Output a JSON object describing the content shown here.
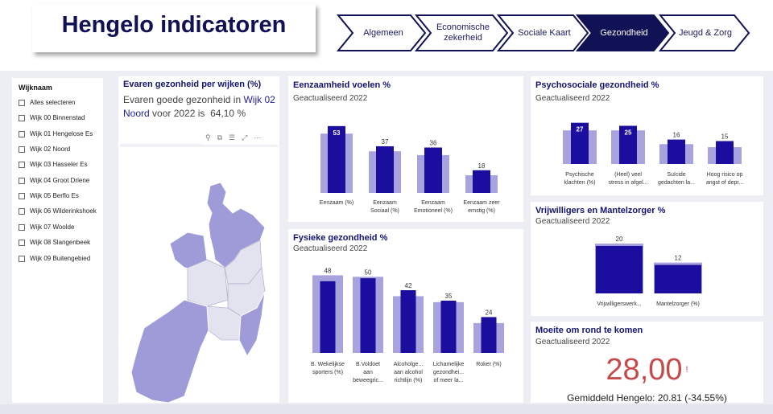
{
  "header": {
    "title": "Hengelo indicatoren"
  },
  "nav": {
    "tabs": [
      "Algemeen",
      "Economische zekerheid",
      "Sociale Kaart",
      "Gezondheid",
      "Jeugd & Zorg"
    ],
    "active": "Gezondheid"
  },
  "slicer": {
    "title": "Wijknaam",
    "items": [
      "Alles selecteren",
      "Wijk 00 Binnenstad",
      "Wijk 01 Hengelose Es",
      "Wijk 02 Noord",
      "Wijk 03 Hasseler Es",
      "Wijk 04 Groot Driene",
      "Wijk 05 Berflo Es",
      "Wijk 06 Wilderinkshoek",
      "Wijk 07 Woolde",
      "Wijk 08 Slangenbeek",
      "Wijk 09 Buitengebied"
    ]
  },
  "map_card": {
    "title": "Evaren gezonheid per wijken (%)",
    "text_before": "Evaren goede gezonheid in",
    "highlight_1": "Wijk 02",
    "highlight_2": "Noord",
    "text_after": "voor 2022 is",
    "value": "64,10 %"
  },
  "eenzaamheid": {
    "title": "Eenzaamheid voelen %",
    "subtitle": "Geactualiseerd 2022"
  },
  "fysiek": {
    "title": "Fysieke gezondheid %",
    "subtitle": "Geactualiseerd 2022"
  },
  "psycho": {
    "title": "Psychosociale gezondheid %",
    "subtitle": "Geactualiseerd 2022"
  },
  "vrijwilligers": {
    "title": "Vrijwilligers en Mantelzorger %",
    "subtitle": "Geactualiseerd 2022"
  },
  "moeite": {
    "title": "Moeite om rond te komen",
    "subtitle": "Geactualiseerd 2022",
    "value": "28,00",
    "flag": "!",
    "footer": "Gemiddeld Hengelo: 20.81 (-34.55%)"
  },
  "colors": {
    "navy": "#1b0d9e",
    "lavender": "#a8a3dd",
    "title_blue": "#141470",
    "kpi_red": "#c64a4c",
    "map_highlight": "#9e9bd8",
    "map_light": "#e3e3f0"
  },
  "chart_data": [
    {
      "type": "bar",
      "id": "eenzaamheid",
      "categories": [
        [
          "Eenzaam (%)"
        ],
        [
          "Eenzaam",
          "Sociaal (%)"
        ],
        [
          "Eenzaam",
          "Emotioneel (%)"
        ],
        [
          "Eenzaam zeer",
          "ernstig (%)"
        ]
      ],
      "values": [
        53,
        37,
        36,
        18
      ],
      "reference": [
        47,
        33,
        30,
        14
      ],
      "ylim": [
        0,
        58
      ]
    },
    {
      "type": "bar",
      "id": "fysiek",
      "categories": [
        [
          "B. Wekelijkse",
          "sporters (%)"
        ],
        [
          "B.Voldoet",
          "aan",
          "beweegric..."
        ],
        [
          "Alcoholge...",
          "aan alcohol",
          "richtlijn (%)"
        ],
        [
          "Lichamelijke",
          "gezondhei...",
          "of meer la..."
        ],
        [
          "Roker (%)"
        ]
      ],
      "values": [
        48,
        50,
        42,
        35,
        24
      ],
      "reference": [
        52,
        51,
        38,
        34,
        20
      ],
      "ylim": [
        0,
        56
      ]
    },
    {
      "type": "bar",
      "id": "psycho",
      "categories": [
        [
          "Psychische",
          "klachten (%)"
        ],
        [
          "(Heel) veel",
          "stress in afgel..."
        ],
        [
          "Suïcide",
          "gedachten la..."
        ],
        [
          "Hoog risico op",
          "angst of depr..."
        ]
      ],
      "values": [
        27,
        25,
        16,
        15
      ],
      "reference": [
        22,
        22,
        13,
        11
      ],
      "ylim": [
        0,
        30
      ]
    },
    {
      "type": "bar",
      "id": "vrijwilligers",
      "categories": [
        [
          "Vrijwilligerswerk..."
        ],
        [
          "Mantelzorger (%)"
        ]
      ],
      "values": [
        20,
        12
      ],
      "reference": [
        21,
        13
      ],
      "ylim": [
        0,
        21
      ]
    }
  ]
}
